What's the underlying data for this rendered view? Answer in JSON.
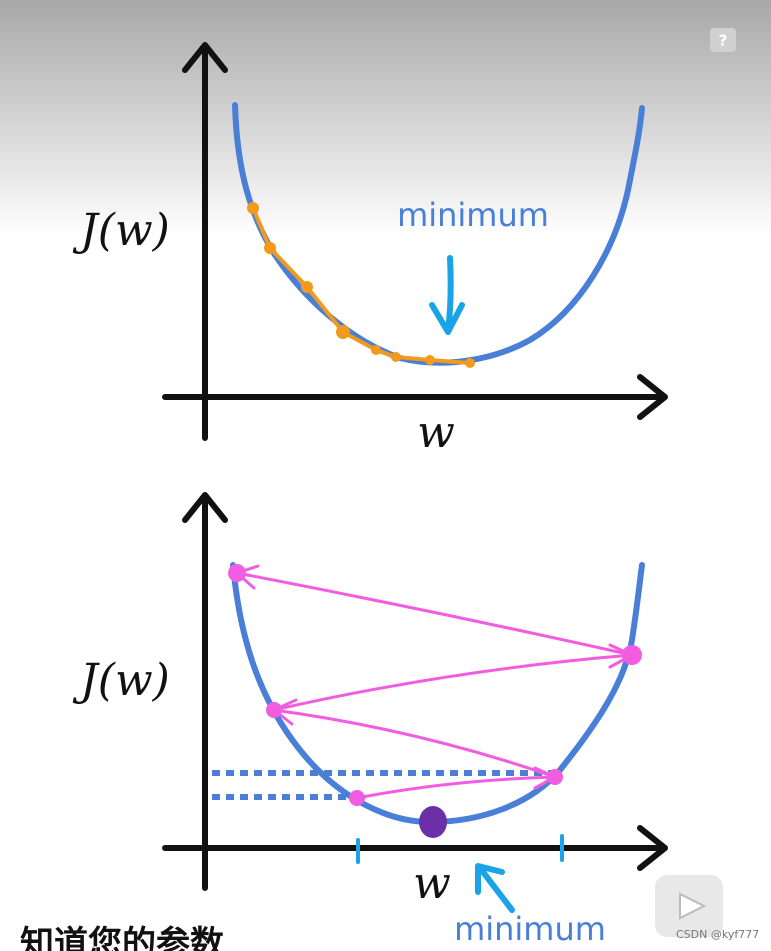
{
  "top_panel": {
    "y_label": "J(w)",
    "x_label": "w",
    "annotation": "minimum"
  },
  "bottom_panel": {
    "y_label": "J(w)",
    "x_label": "w",
    "annotation": "minimum"
  },
  "help_icon": "?",
  "subtitle": "知道您的参数",
  "watermark": "CSDN @kyf777"
}
